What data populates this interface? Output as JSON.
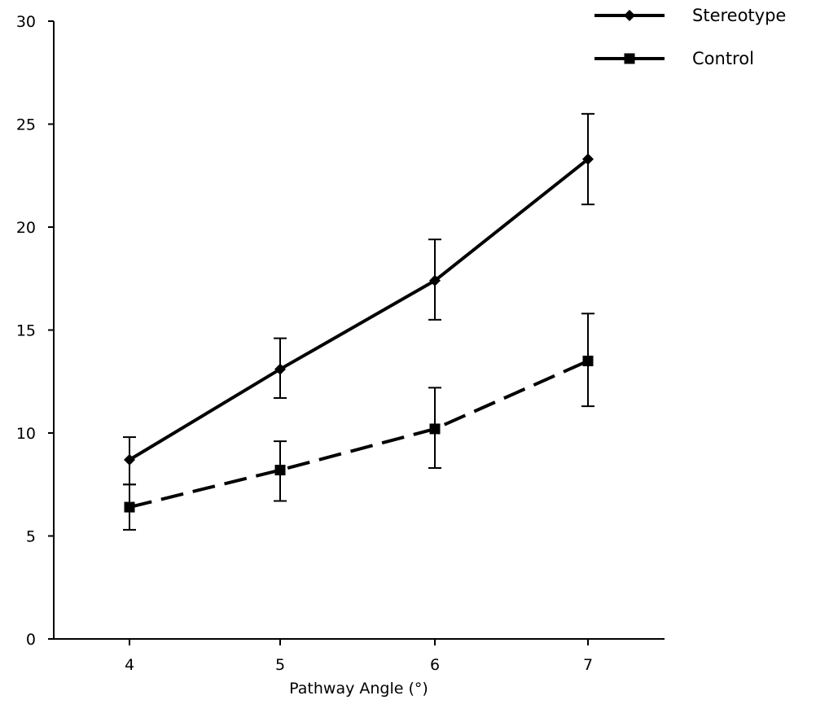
{
  "chart_data": {
    "type": "line",
    "xlabel": "Pathway Angle (°)",
    "ylabel": "",
    "categories": [
      "4",
      "5",
      "6",
      "7"
    ],
    "y_ticks": [
      "0",
      "5",
      "10",
      "15",
      "20",
      "25",
      "30"
    ],
    "ylim": [
      0,
      30
    ],
    "grid": false,
    "legend_position": "top-right",
    "series": [
      {
        "name": "Stereotype",
        "values": [
          8.7,
          13.1,
          17.4,
          23.3
        ],
        "error_upper": [
          9.8,
          14.6,
          19.4,
          25.5
        ],
        "error_lower": [
          7.5,
          11.7,
          15.5,
          21.1
        ],
        "line_style": "solid",
        "marker": "diamond",
        "color": "#000000"
      },
      {
        "name": "Control",
        "values": [
          6.4,
          8.2,
          10.2,
          13.5
        ],
        "error_upper": [
          7.5,
          9.6,
          12.2,
          15.8
        ],
        "error_lower": [
          5.3,
          6.7,
          8.3,
          11.3
        ],
        "line_style": "dashed",
        "marker": "square",
        "color": "#000000"
      }
    ]
  }
}
